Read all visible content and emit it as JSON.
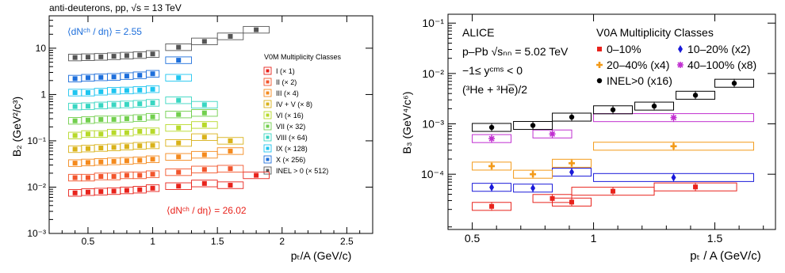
{
  "left": {
    "header": "anti-deuterons, pp, √s = 13 TeV",
    "ylabel": "B₂ (GeV²/c³)",
    "xlabel": "pₜ/A (GeV/c)",
    "annot_top": "⟨dNᶜʰ / dη⟩ = 2.55",
    "annot_bottom": "⟨dNᶜʰ / dη⟩ = 26.02",
    "legend_title": "V0M Multiplicity Classes",
    "xticks": [
      "0.5",
      "1",
      "1.5",
      "2",
      "2.5"
    ],
    "yticks": [
      "10⁻³",
      "10⁻²",
      "10⁻¹",
      "1",
      "10"
    ]
  },
  "right": {
    "ylabel": "B₃ (GeV⁴/c⁶)",
    "xlabel": "pₜ / A (GeV/c)",
    "text_lines": [
      "ALICE",
      "p–Pb √sₙₙ = 5.02 TeV",
      "−1≤ yᶜᵐˢ < 0",
      "(³He + ³He̅)/2"
    ],
    "legend_title": "V0A Multiplicity Classes",
    "xticks": [
      "0.5",
      "1",
      "1.5"
    ],
    "yticks": [
      "10⁻⁴",
      "10⁻³",
      "10⁻²",
      "10⁻¹"
    ]
  },
  "chart_data": [
    {
      "type": "scatter",
      "title": "anti-deuterons, pp, √s = 13 TeV",
      "xlabel": "pₜ/A (GeV/c)",
      "ylabel": "B₂ (GeV²/c³)",
      "xlim": [
        0.2,
        2.7
      ],
      "ylim": [
        0.001,
        50
      ],
      "yscale": "log",
      "x": [
        0.4,
        0.5,
        0.6,
        0.7,
        0.8,
        0.9,
        1.0,
        1.2,
        1.4,
        1.6,
        1.8
      ],
      "series": [
        {
          "name": "I (× 1)",
          "color": "#e8231c",
          "values": [
            0.0075,
            0.0078,
            0.008,
            0.0082,
            0.0085,
            0.0088,
            0.0095,
            0.0105,
            0.012,
            0.011,
            0.018
          ]
        },
        {
          "name": "II (× 2)",
          "color": "#f2552c",
          "values": [
            0.016,
            0.016,
            0.017,
            0.017,
            0.018,
            0.018,
            0.019,
            0.021,
            0.024,
            0.025,
            null
          ]
        },
        {
          "name": "III (× 4)",
          "color": "#f48a1e",
          "values": [
            0.033,
            0.034,
            0.035,
            0.036,
            0.037,
            0.038,
            0.04,
            0.045,
            0.05,
            0.06,
            null
          ]
        },
        {
          "name": "IV + V (× 8)",
          "color": "#d9b21a",
          "values": [
            0.066,
            0.068,
            0.07,
            0.072,
            0.075,
            0.078,
            0.08,
            0.09,
            0.12,
            0.1,
            null
          ]
        },
        {
          "name": "VI (× 16)",
          "color": "#b7d92a",
          "values": [
            0.13,
            0.14,
            0.14,
            0.15,
            0.15,
            0.16,
            0.16,
            0.19,
            0.22,
            null,
            null
          ]
        },
        {
          "name": "VII (× 32)",
          "color": "#72cf4e",
          "values": [
            0.27,
            0.28,
            0.29,
            0.29,
            0.3,
            0.31,
            0.33,
            0.37,
            0.4,
            null,
            null
          ]
        },
        {
          "name": "VIII (× 64)",
          "color": "#39d6c2",
          "values": [
            0.55,
            0.56,
            0.58,
            0.6,
            0.61,
            0.63,
            0.66,
            0.75,
            0.6,
            null,
            null
          ]
        },
        {
          "name": "IX (× 128)",
          "color": "#1ec5f0",
          "values": [
            1.1,
            1.1,
            1.15,
            1.2,
            1.22,
            1.25,
            1.3,
            2.3,
            null,
            null,
            null
          ]
        },
        {
          "name": "X (× 256)",
          "color": "#1e6fdb",
          "values": [
            2.2,
            2.3,
            2.35,
            2.4,
            2.5,
            2.6,
            2.8,
            5.5,
            null,
            null,
            null
          ]
        },
        {
          "name": "INEL > 0 (× 512)",
          "color": "#555555",
          "values": [
            6.3,
            6.4,
            6.5,
            6.7,
            6.9,
            7.1,
            7.5,
            10.5,
            14,
            18,
            25
          ]
        }
      ]
    },
    {
      "type": "scatter",
      "xlabel": "pₜ / A (GeV/c)",
      "ylabel": "B₃ (GeV⁴/c⁶)",
      "xlim": [
        0.4,
        1.75
      ],
      "ylim": [
        8e-06,
        0.15
      ],
      "yscale": "log",
      "series": [
        {
          "name": "0–10%",
          "color": "#e8231c",
          "marker": "square",
          "x": [
            0.58,
            0.83,
            0.91,
            1.08,
            1.42
          ],
          "values": [
            2.3e-05,
            3.3e-05,
            2.8e-05,
            4.6e-05,
            5.6e-05
          ],
          "box_halfwidth": [
            0.08,
            0.08,
            0.08,
            0.17,
            0.17
          ]
        },
        {
          "name": "10–20% (x2)",
          "color": "#1a1ad9",
          "marker": "diamond",
          "x": [
            0.58,
            0.75,
            0.91,
            1.33
          ],
          "values": [
            5.5e-05,
            5.3e-05,
            0.00011,
            8.6e-05
          ],
          "box_halfwidth": [
            0.08,
            0.08,
            0.08,
            0.33
          ]
        },
        {
          "name": "20–40% (x4)",
          "color": "#f39a18",
          "marker": "cross",
          "x": [
            0.58,
            0.75,
            0.91,
            1.33
          ],
          "values": [
            0.000145,
            0.0001,
            0.000165,
            0.00036
          ],
          "box_halfwidth": [
            0.08,
            0.08,
            0.08,
            0.33
          ]
        },
        {
          "name": "40–100% (x8)",
          "color": "#c02fd0",
          "marker": "star",
          "x": [
            0.58,
            0.83,
            1.33
          ],
          "values": [
            0.00051,
            0.00063,
            0.00133
          ],
          "box_halfwidth": [
            0.08,
            0.08,
            0.33
          ]
        },
        {
          "name": "INEL>0 (x16)",
          "color": "#000000",
          "marker": "circle",
          "x": [
            0.58,
            0.75,
            0.91,
            1.08,
            1.25,
            1.42,
            1.58
          ],
          "values": [
            0.00085,
            0.00093,
            0.00136,
            0.0019,
            0.00225,
            0.0037,
            0.0064
          ],
          "box_halfwidth": [
            0.08,
            0.08,
            0.08,
            0.08,
            0.08,
            0.08,
            0.08
          ]
        }
      ]
    }
  ]
}
